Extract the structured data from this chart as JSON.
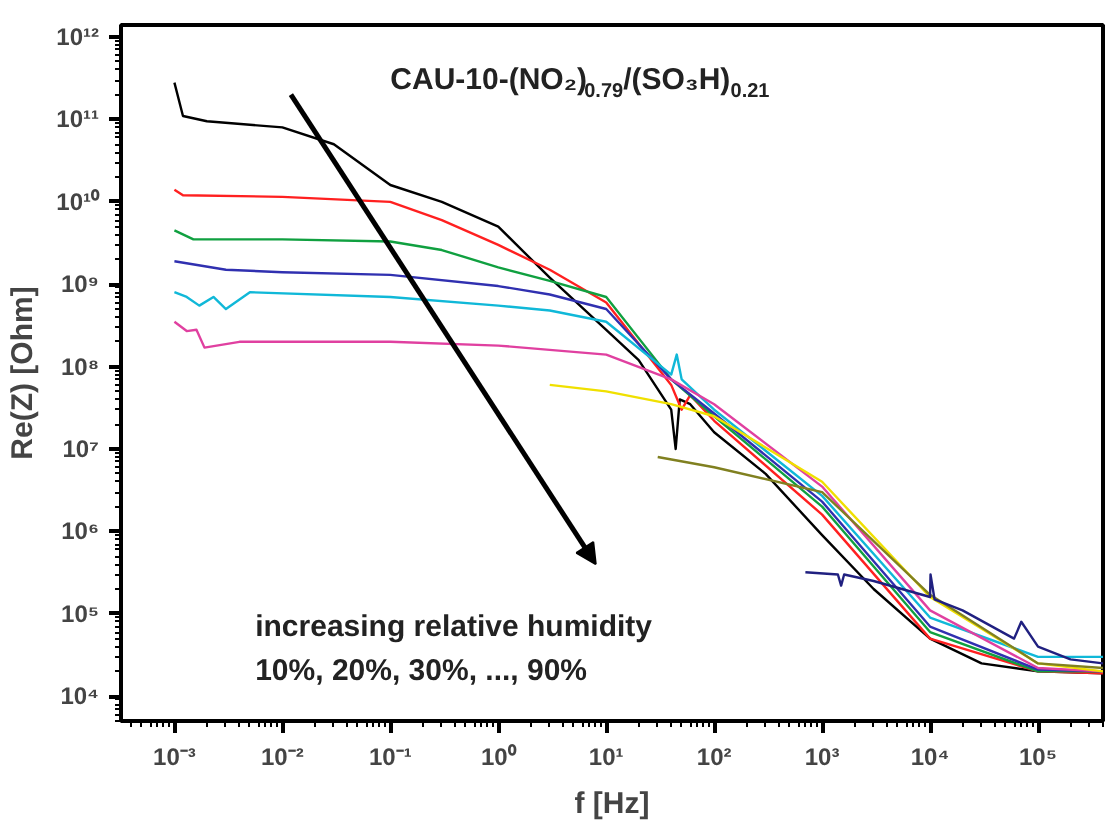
{
  "chart_data": {
    "type": "line",
    "title": "CAU-10-(NO₂)$_{0.79}$/(SO₃H)$_{0.21}$",
    "xlabel": "f [Hz]",
    "ylabel": "Re(Z) [Ohm]",
    "annotations": [
      "increasing relative humidity",
      "10%, 20%, 30%, ..., 90%"
    ],
    "log": "xy",
    "grid": false,
    "marker": "none",
    "line_style": "solid",
    "xlim": [
      0.00032,
      400000
    ],
    "ylim": [
      5000,
      1400000000000
    ],
    "xticks": [
      {
        "value": 0.001,
        "label": "10⁻³"
      },
      {
        "value": 0.01,
        "label": "10⁻²"
      },
      {
        "value": 0.1,
        "label": "10⁻¹"
      },
      {
        "value": 1,
        "label": "10⁰"
      },
      {
        "value": 10,
        "label": "10¹"
      },
      {
        "value": 100,
        "label": "10²"
      },
      {
        "value": 1000,
        "label": "10³"
      },
      {
        "value": 10000,
        "label": "10⁴"
      },
      {
        "value": 100000,
        "label": "10⁵"
      }
    ],
    "yticks": [
      {
        "value": 10000,
        "label": "10⁴"
      },
      {
        "value": 100000,
        "label": "10⁵"
      },
      {
        "value": 1000000,
        "label": "10⁶"
      },
      {
        "value": 10000000,
        "label": "10⁷"
      },
      {
        "value": 100000000,
        "label": "10⁸"
      },
      {
        "value": 1000000000,
        "label": "10⁹"
      },
      {
        "value": 10000000000,
        "label": "10¹⁰"
      },
      {
        "value": 100000000000,
        "label": "10¹¹"
      },
      {
        "value": 1000000000000,
        "label": "10¹²"
      }
    ],
    "series": [
      {
        "color": "#000000",
        "x": [
          0.001,
          0.0012,
          0.002,
          0.01,
          0.03,
          0.1,
          0.3,
          1,
          3,
          10,
          20,
          40,
          44,
          48,
          60,
          100,
          300,
          1000,
          3000,
          10000,
          30000,
          100000,
          400000
        ],
        "values": [
          280000000000,
          110000000000,
          95000000000,
          80000000000,
          50000000000,
          16000000000,
          10000000000,
          5000000000,
          1200000000,
          280000000,
          120000000,
          30000000,
          10000000,
          40000000,
          35000000,
          16000000,
          5000000,
          900000,
          200000,
          50000,
          25000,
          20000,
          19000
        ]
      },
      {
        "color": "#ff2020",
        "x": [
          0.001,
          0.0012,
          0.01,
          0.1,
          0.3,
          1,
          3,
          10,
          40,
          50,
          60,
          100,
          1000,
          10000,
          100000,
          400000
        ],
        "values": [
          14000000000,
          12000000000,
          11500000000,
          10000000000,
          6000000000,
          3000000000,
          1500000000,
          600000000,
          60000000,
          30000000,
          45000000,
          22000000,
          1600000,
          50000,
          20000,
          19000
        ]
      },
      {
        "color": "#10a040",
        "x": [
          0.001,
          0.0015,
          0.01,
          0.1,
          0.3,
          1,
          3,
          10,
          40,
          100,
          1000,
          10000,
          100000,
          400000
        ],
        "values": [
          4500000000,
          3500000000,
          3500000000,
          3300000000,
          2600000000,
          1600000000,
          1100000000,
          700000000,
          70000000,
          25000000,
          2000000,
          60000,
          20000,
          20000
        ]
      },
      {
        "color": "#3030b0",
        "x": [
          0.001,
          0.003,
          0.01,
          0.1,
          1,
          3,
          10,
          40,
          100,
          1000,
          10000,
          100000,
          400000
        ],
        "values": [
          1900000000,
          1500000000,
          1400000000,
          1300000000,
          950000000,
          750000000,
          500000000,
          70000000,
          27000000,
          2300000,
          70000,
          21000,
          20000
        ]
      },
      {
        "color": "#10b8d8",
        "x": [
          0.001,
          0.0013,
          0.0017,
          0.0023,
          0.003,
          0.005,
          0.1,
          1,
          3,
          10,
          40,
          45,
          50,
          100,
          1000,
          10000,
          100000,
          400000
        ],
        "values": [
          800000000,
          700000000,
          550000000,
          700000000,
          500000000,
          800000000,
          700000000,
          550000000,
          480000000,
          350000000,
          80000000,
          140000000,
          70000000,
          30000000,
          2700000,
          90000,
          30000,
          30000
        ]
      },
      {
        "color": "#e040a0",
        "x": [
          0.001,
          0.0013,
          0.0016,
          0.0019,
          0.004,
          0.1,
          1,
          10,
          40,
          100,
          1000,
          10000,
          100000,
          400000
        ],
        "values": [
          350000000,
          270000000,
          280000000,
          170000000,
          200000000,
          200000000,
          180000000,
          140000000,
          70000000,
          35000000,
          3500000,
          110000,
          22000,
          20000
        ]
      },
      {
        "color": "#f0e000",
        "x": [
          3,
          10,
          40,
          100,
          1000,
          10000,
          100000,
          400000
        ],
        "values": [
          60000000,
          50000000,
          35000000,
          25000000,
          4000000,
          160000,
          25000,
          20000
        ]
      },
      {
        "color": "#808020",
        "x": [
          30,
          100,
          1000,
          10000,
          100000,
          400000
        ],
        "values": [
          8000000,
          6000000,
          3000000,
          170000,
          25000,
          22000
        ]
      },
      {
        "color": "#202080",
        "x": [
          700,
          1400,
          1500,
          1600,
          3000,
          10000,
          10100,
          11000,
          20000,
          60000,
          70000,
          100000,
          200000,
          400000
        ],
        "values": [
          320000,
          300000,
          220000,
          300000,
          250000,
          160000,
          300000,
          150000,
          110000,
          50000,
          80000,
          40000,
          28000,
          25000
        ]
      }
    ]
  }
}
